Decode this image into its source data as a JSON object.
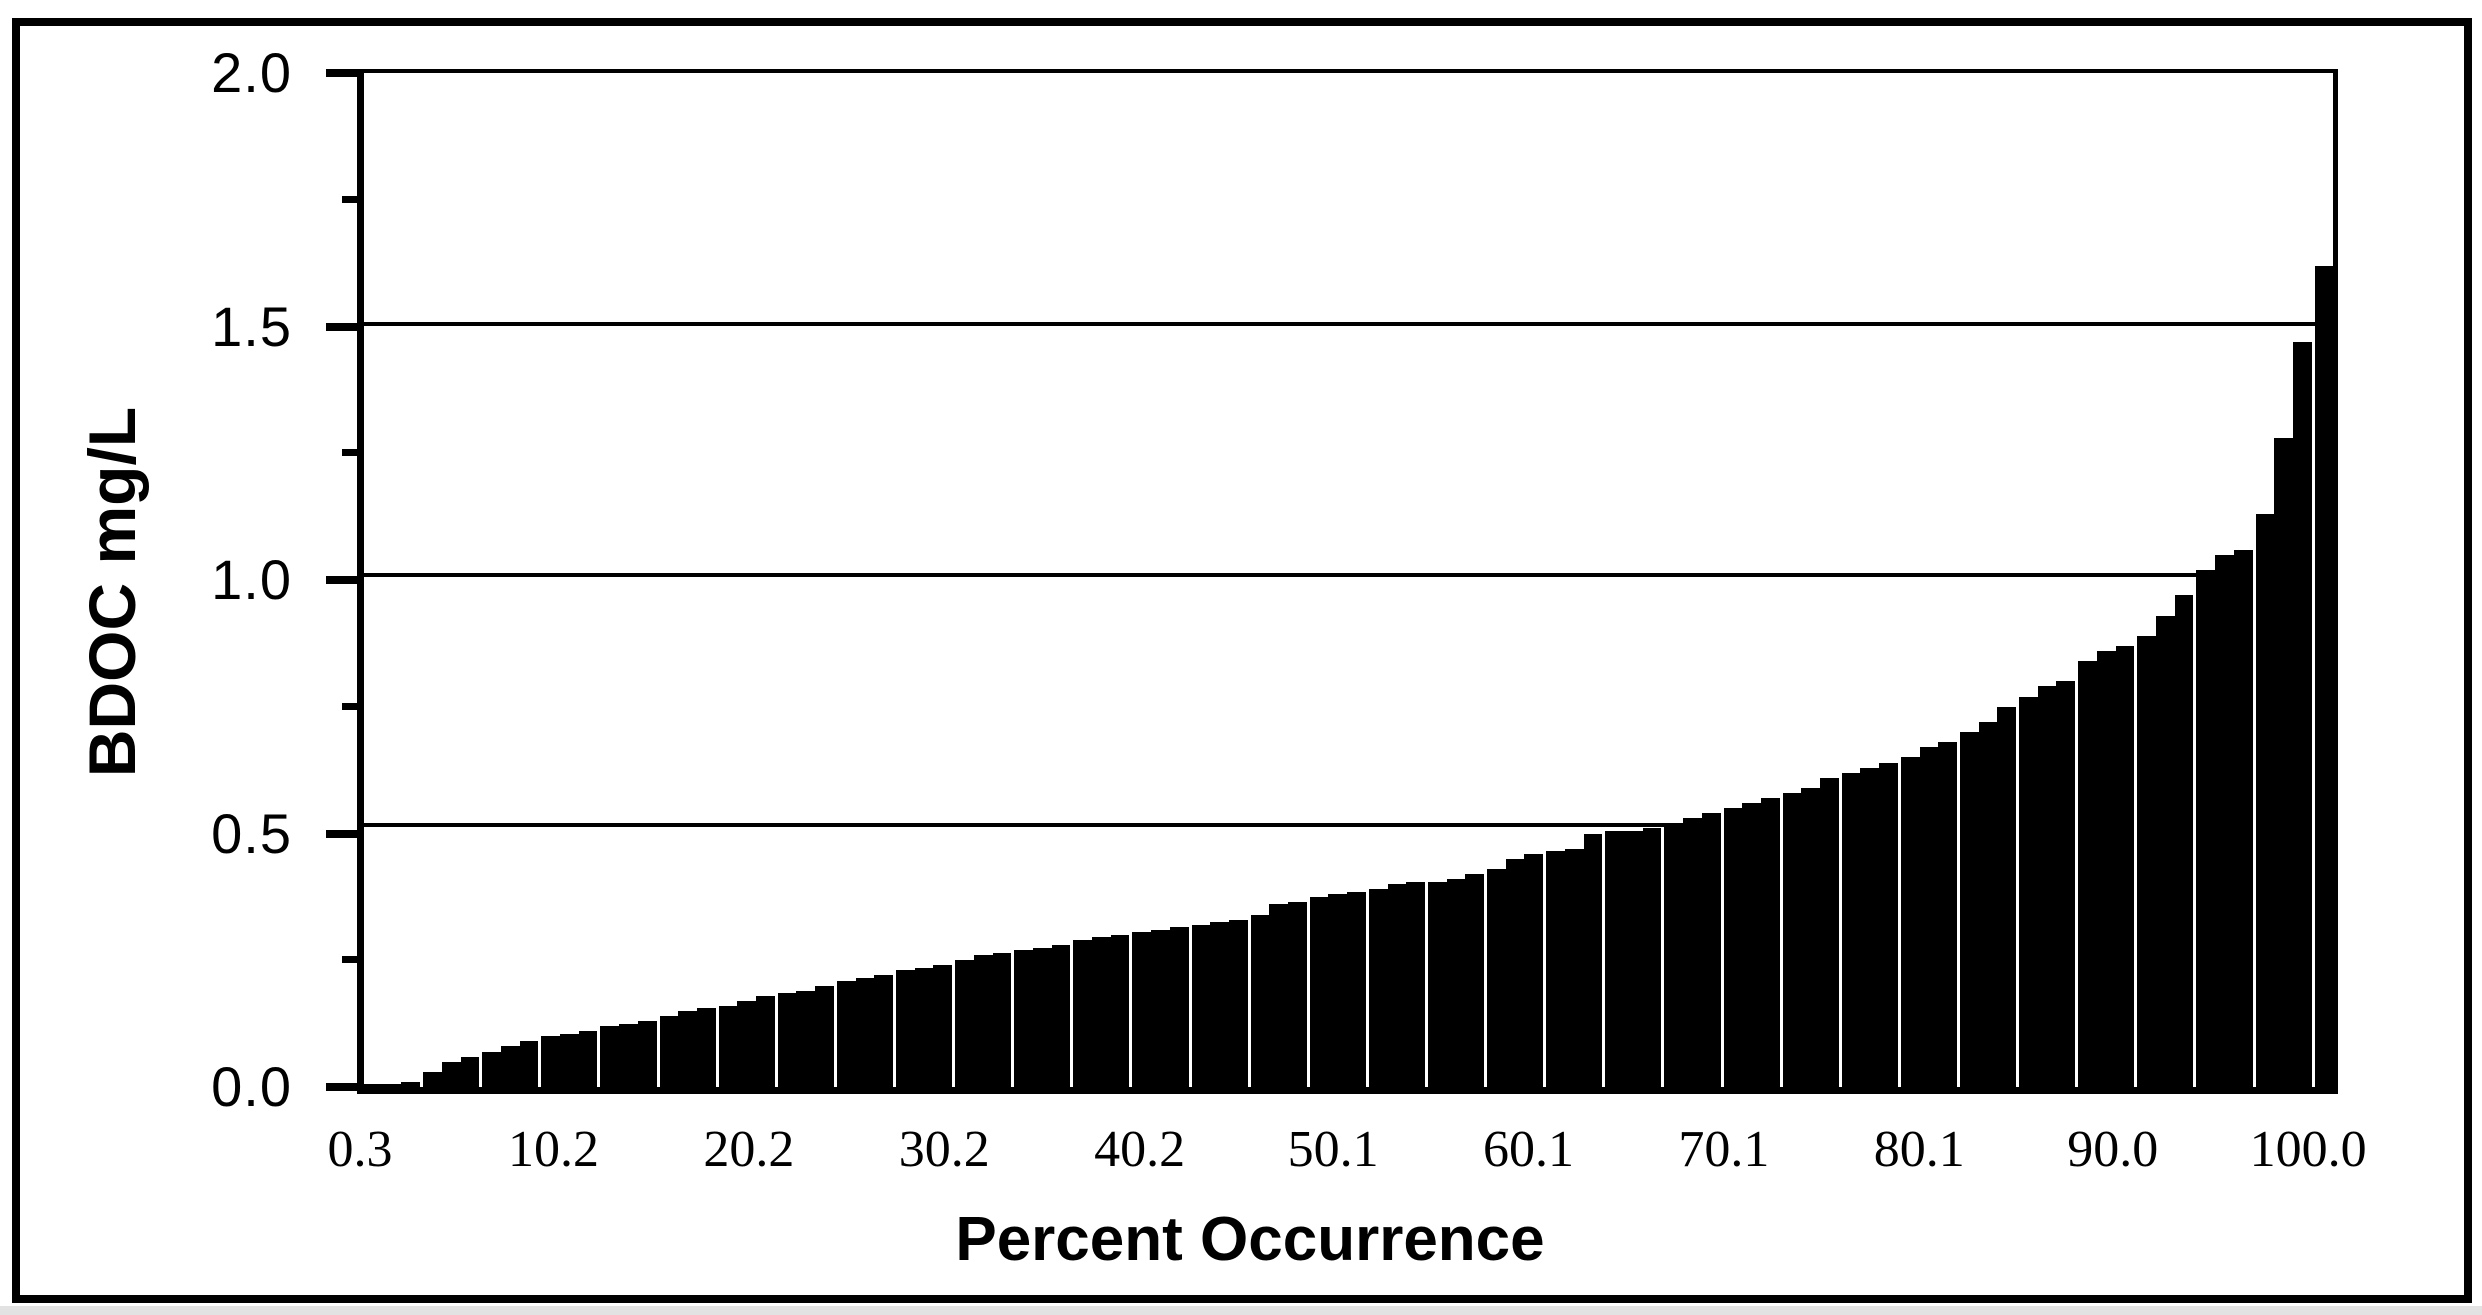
{
  "figure": {
    "y_axis": {
      "title": "BDOC mg/L",
      "tick_labels": [
        "2.0",
        "1.5",
        "1.0",
        "0.5",
        "0.0"
      ],
      "min": 0.0,
      "max": 2.0,
      "major_step": 0.5,
      "minor_step": 0.25
    },
    "x_axis": {
      "title": "Percent Occurrence",
      "tick_labels": [
        "0.3",
        "10.2",
        "20.2",
        "30.2",
        "40.2",
        "50.1",
        "60.1",
        "70.1",
        "80.1",
        "90.0",
        "100.0"
      ]
    },
    "colors": {
      "bar": "#000000",
      "background": "#ffffff",
      "frame": "#000000"
    }
  },
  "chart_data": {
    "type": "bar",
    "title": "",
    "xlabel": "Percent Occurrence",
    "ylabel": "BDOC mg/L",
    "ylim": [
      0.0,
      2.0
    ],
    "x_range": [
      0.3,
      100.0
    ],
    "x_tick_values": [
      0.3,
      10.2,
      20.2,
      30.2,
      40.2,
      50.1,
      60.1,
      70.1,
      80.1,
      90.0,
      100.0
    ],
    "grid": "horizontal at 0.5, 1.0, 1.5, 2.0",
    "legend": "none",
    "description": "Ranked cumulative distribution of BDOC concentrations; one narrow black column per sample percentile, thin white separators about every 3 percent",
    "percent_sampled_every": 1,
    "values": [
      0.005,
      0.005,
      0.01,
      0.03,
      0.05,
      0.06,
      0.07,
      0.08,
      0.09,
      0.1,
      0.105,
      0.11,
      0.12,
      0.125,
      0.13,
      0.14,
      0.15,
      0.155,
      0.16,
      0.17,
      0.18,
      0.185,
      0.19,
      0.2,
      0.21,
      0.215,
      0.22,
      0.23,
      0.235,
      0.24,
      0.25,
      0.26,
      0.265,
      0.27,
      0.275,
      0.28,
      0.29,
      0.295,
      0.3,
      0.305,
      0.31,
      0.315,
      0.32,
      0.325,
      0.33,
      0.34,
      0.36,
      0.365,
      0.375,
      0.38,
      0.385,
      0.39,
      0.4,
      0.405,
      0.405,
      0.41,
      0.42,
      0.43,
      0.45,
      0.46,
      0.465,
      0.47,
      0.5,
      0.505,
      0.505,
      0.51,
      0.52,
      0.53,
      0.54,
      0.55,
      0.56,
      0.57,
      0.58,
      0.59,
      0.61,
      0.62,
      0.63,
      0.64,
      0.65,
      0.67,
      0.68,
      0.7,
      0.72,
      0.75,
      0.77,
      0.79,
      0.8,
      0.84,
      0.86,
      0.87,
      0.89,
      0.93,
      0.97,
      1.02,
      1.05,
      1.06,
      1.13,
      1.28,
      1.47,
      1.62
    ]
  }
}
